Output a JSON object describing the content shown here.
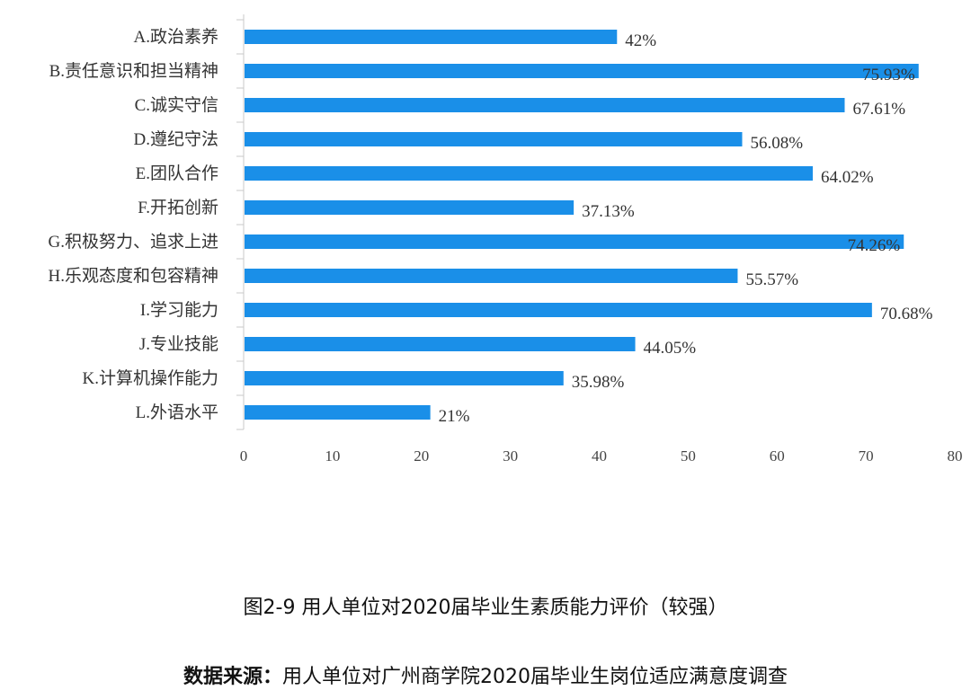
{
  "chart_data": {
    "type": "bar",
    "orientation": "horizontal",
    "categories": [
      "A.政治素养",
      "B.责任意识和担当精神",
      "C.诚实守信",
      "D.遵纪守法",
      "E.团队合作",
      "F.开拓创新",
      "G.积极努力、追求上进",
      "H.乐观态度和包容精神",
      "I.学习能力",
      "J.专业技能",
      "K.计算机操作能力",
      "L.外语水平"
    ],
    "values": [
      42,
      75.93,
      67.61,
      56.08,
      64.02,
      37.13,
      74.26,
      55.57,
      70.68,
      44.05,
      35.98,
      21
    ],
    "value_labels": [
      "42%",
      "75.93%",
      "67.61%",
      "56.08%",
      "64.02%",
      "37.13%",
      "74.26%",
      "55.57%",
      "70.68%",
      "44.05%",
      "35.98%",
      "21%"
    ],
    "xticks": [
      "0",
      "10",
      "20",
      "30",
      "40",
      "50",
      "60",
      "70",
      "80"
    ],
    "xlim": [
      0,
      80
    ],
    "title": "",
    "xlabel": "",
    "ylabel": "",
    "grid": false,
    "legend": "none",
    "bar_color": "#1a8fe8"
  },
  "caption": "图2-9 用人单位对2020届毕业生素质能力评价（较强）",
  "source": {
    "key": "数据来源：",
    "text": "用人单位对广州商学院2020届毕业生岗位适应满意度调查"
  }
}
